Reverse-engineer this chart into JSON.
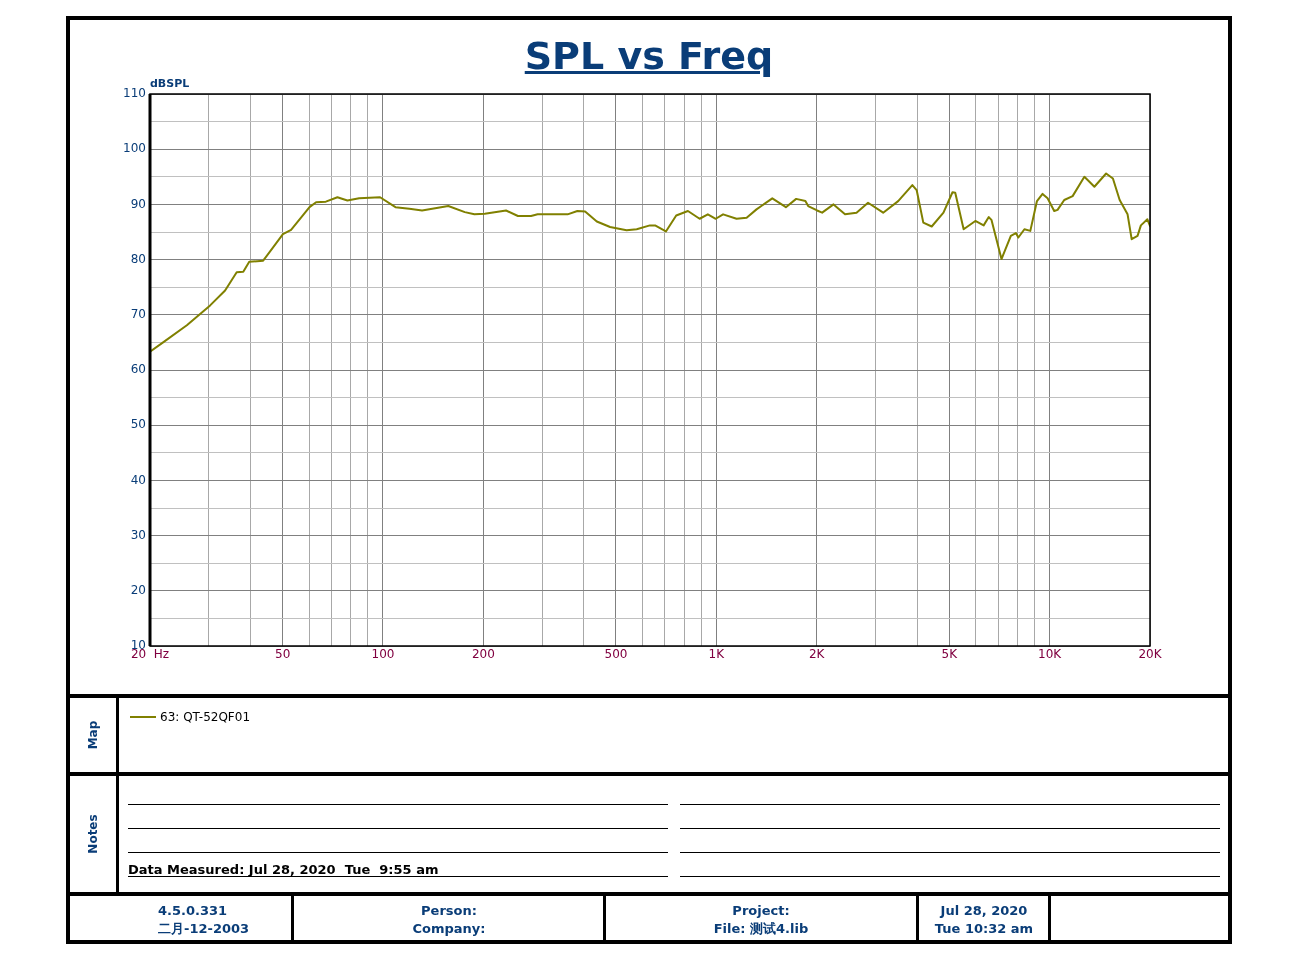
{
  "chart_data": {
    "type": "line",
    "title": "SPL vs Freq",
    "ylabel": "dBSPL",
    "log": "x",
    "grid": true,
    "legend": "bottom",
    "marker": "none",
    "line_style": "solid",
    "xlim": [
      20,
      20000
    ],
    "xticks": [
      {
        "value": 20,
        "label": "20  Hz"
      },
      {
        "value": 30,
        "label": null
      },
      {
        "value": 40,
        "label": null
      },
      {
        "value": 50,
        "label": "50"
      },
      {
        "value": 60,
        "label": null
      },
      {
        "value": 70,
        "label": null
      },
      {
        "value": 80,
        "label": null
      },
      {
        "value": 90,
        "label": null
      },
      {
        "value": 100,
        "label": "100"
      },
      {
        "value": 200,
        "label": "200"
      },
      {
        "value": 300,
        "label": null
      },
      {
        "value": 400,
        "label": null
      },
      {
        "value": 500,
        "label": "500"
      },
      {
        "value": 600,
        "label": null
      },
      {
        "value": 700,
        "label": null
      },
      {
        "value": 800,
        "label": null
      },
      {
        "value": 900,
        "label": null
      },
      {
        "value": 1000,
        "label": "1K"
      },
      {
        "value": 2000,
        "label": "2K"
      },
      {
        "value": 3000,
        "label": null
      },
      {
        "value": 4000,
        "label": null
      },
      {
        "value": 5000,
        "label": "5K"
      },
      {
        "value": 6000,
        "label": null
      },
      {
        "value": 7000,
        "label": null
      },
      {
        "value": 8000,
        "label": null
      },
      {
        "value": 9000,
        "label": null
      },
      {
        "value": 10000,
        "label": "10K"
      },
      {
        "value": 20000,
        "label": "20K"
      }
    ],
    "ylim": [
      10,
      110
    ],
    "yticks": [
      10,
      {
        "value": 15,
        "label": null
      },
      20,
      {
        "value": 25,
        "label": null
      },
      30,
      {
        "value": 35,
        "label": null
      },
      40,
      {
        "value": 45,
        "label": null
      },
      50,
      {
        "value": 55,
        "label": null
      },
      60,
      {
        "value": 65,
        "label": null
      },
      70,
      {
        "value": 75,
        "label": null
      },
      80,
      {
        "value": 85,
        "label": null
      },
      90,
      {
        "value": 95,
        "label": null
      },
      100,
      {
        "value": 105,
        "label": null
      },
      110
    ],
    "series": [
      {
        "name": "63: QT-52QF01",
        "color": "#808000",
        "x": [
          20,
          22,
          25.8,
          30.3,
          33.6,
          36.4,
          38.1,
          39.7,
          43.7,
          50.1,
          53,
          60.2,
          63,
          67.4,
          73,
          78.2,
          84.8,
          98,
          109,
          120,
          131,
          157,
          176,
          188,
          202,
          234,
          254,
          278,
          291,
          358,
          383,
          404,
          438,
          480,
          538,
          577,
          632,
          655,
          706,
          758,
          822,
          891,
          943,
          996,
          1048,
          1150,
          1233,
          1320,
          1472,
          1617,
          1736,
          1850,
          1886,
          2006,
          2077,
          2247,
          2433,
          2634,
          2852,
          3166,
          3512,
          3873,
          3990,
          4178,
          4428,
          4802,
          5111,
          5209,
          5520,
          5985,
          6338,
          6567,
          6689,
          7170,
          7648,
          7918,
          8056,
          8400,
          8750,
          9160,
          9522,
          9858,
          10320,
          10560,
          11060,
          11720,
          12710,
          13620,
          14770,
          15480,
          16220,
          17130,
          17620,
          18350,
          18780,
          19640,
          20000
        ],
        "values": [
          63.3,
          65.1,
          68.1,
          71.7,
          74.4,
          77.7,
          77.8,
          79.6,
          79.8,
          84.6,
          85.4,
          89.5,
          90.4,
          90.5,
          91.3,
          90.7,
          91.1,
          91.3,
          89.5,
          89.2,
          88.9,
          89.7,
          88.6,
          88.2,
          88.3,
          88.9,
          87.9,
          87.9,
          88.2,
          88.2,
          88.8,
          88.7,
          86.9,
          85.9,
          85.3,
          85.5,
          86.2,
          86.2,
          85.1,
          88.0,
          88.8,
          87.4,
          88.2,
          87.4,
          88.2,
          87.4,
          87.6,
          89.1,
          91.1,
          89.5,
          91.0,
          90.6,
          89.7,
          88.9,
          88.5,
          90.0,
          88.2,
          88.5,
          90.3,
          88.5,
          90.6,
          93.5,
          92.6,
          86.7,
          86.0,
          88.5,
          92.2,
          92.1,
          85.5,
          87.0,
          86.2,
          87.7,
          87.2,
          80.1,
          84.3,
          84.8,
          84.0,
          85.5,
          85.2,
          90.6,
          91.9,
          91.1,
          88.8,
          89.0,
          90.8,
          91.5,
          95.0,
          93.2,
          95.6,
          94.7,
          90.8,
          88.2,
          83.7,
          84.3,
          86.2,
          87.3,
          86.1
        ]
      }
    ],
    "annotations": [
      "Map",
      "Notes",
      "Data Measured: Jul 28, 2020  Tue  9:55 am",
      "4.5.0.331",
      "二月-12-2003",
      "Person:",
      "Company:",
      "Project:",
      "File: 测试4.lib",
      "Jul 28, 2020",
      "Tue 10:32 am"
    ]
  }
}
